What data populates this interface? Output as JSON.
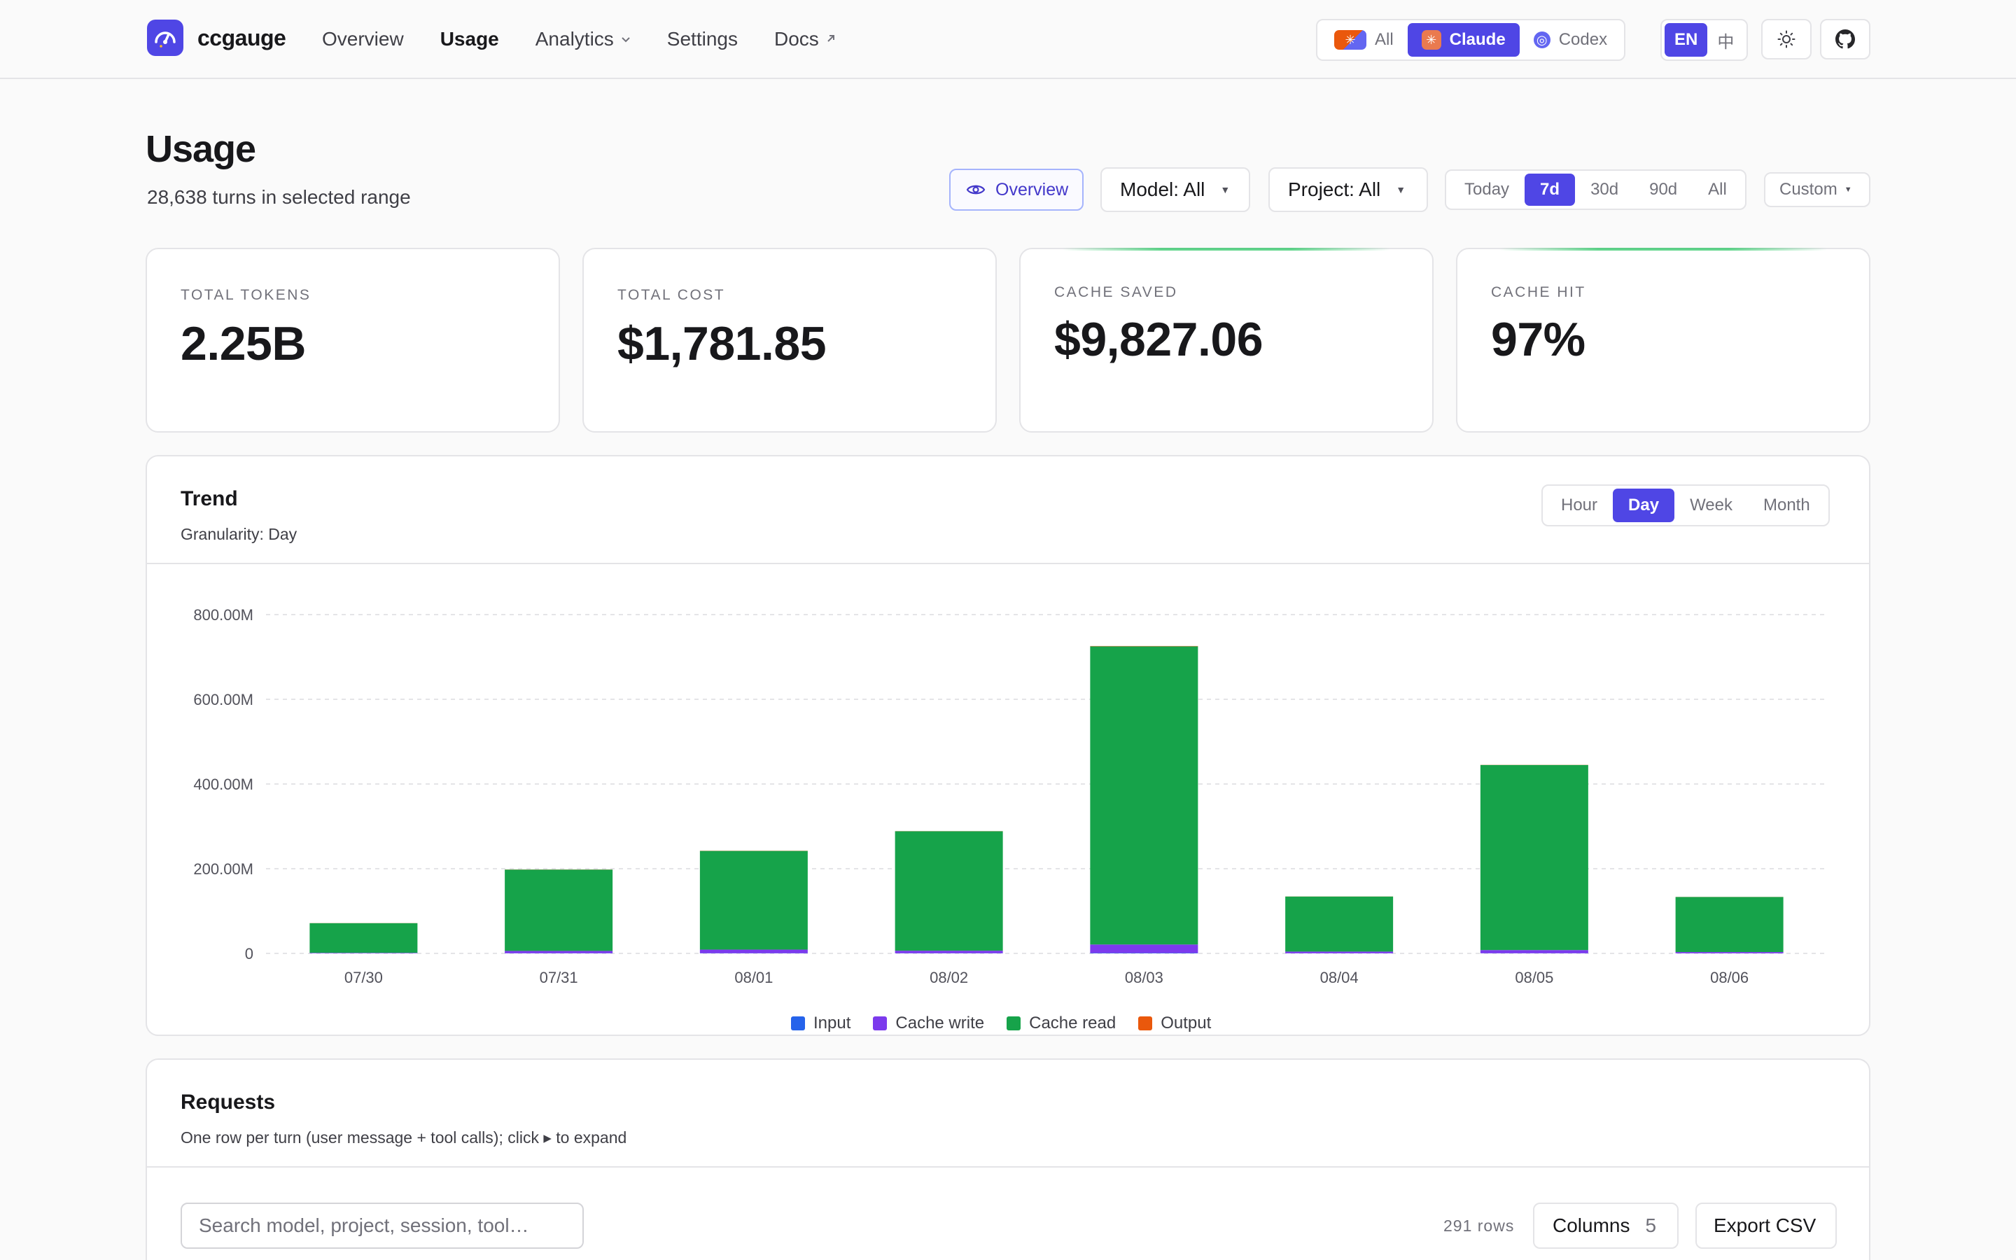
{
  "app": {
    "name": "ccgauge",
    "nav": [
      {
        "label": "Overview",
        "active": false,
        "suffix": ""
      },
      {
        "label": "Usage",
        "active": true,
        "suffix": ""
      },
      {
        "label": "Analytics",
        "active": false,
        "suffix": "⌄"
      },
      {
        "label": "Settings",
        "active": false,
        "suffix": ""
      },
      {
        "label": "Docs",
        "active": false,
        "suffix": "↗"
      }
    ],
    "providers": {
      "all": "All",
      "claude": "Claude",
      "codex": "Codex",
      "selected": "Claude"
    },
    "languages": {
      "en": "EN",
      "zh": "中",
      "selected": "EN"
    },
    "icons": {
      "theme": "sun-icon",
      "github": "github-icon"
    }
  },
  "page": {
    "title": "Usage",
    "subtitle": "28,638 turns in selected range",
    "overview_button": "Overview",
    "model_filter": "Model: All",
    "project_filter": "Project: All",
    "ranges": [
      "Today",
      "7d",
      "30d",
      "90d",
      "All"
    ],
    "range_selected": "7d",
    "custom_range": "Custom"
  },
  "stats": {
    "total_tokens": {
      "label": "TOTAL TOKENS",
      "value": "2.25B"
    },
    "total_cost": {
      "label": "TOTAL COST",
      "value": "$1,781.85"
    },
    "cache_saved": {
      "label": "CACHE SAVED",
      "value": "$9,827.06"
    },
    "cache_hit": {
      "label": "CACHE HIT",
      "value": "97%"
    }
  },
  "trend": {
    "title": "Trend",
    "granularity_text": "Granularity: Day",
    "granularity_options": [
      "Hour",
      "Day",
      "Week",
      "Month"
    ],
    "granularity_selected": "Day"
  },
  "colors": {
    "accent": "#4f46e5",
    "input": "#2563eb",
    "cache_write": "#7c3aed",
    "cache_read": "#16a34a",
    "output": "#ea580c"
  },
  "chart_data": {
    "type": "bar",
    "stacked": true,
    "categories": [
      "07/30",
      "07/31",
      "08/01",
      "08/02",
      "08/03",
      "08/04",
      "08/05",
      "08/06"
    ],
    "series": [
      {
        "name": "Input",
        "color": "#2563eb",
        "values": [
          0.2,
          0.4,
          0.5,
          0.4,
          1.0,
          0.3,
          0.4,
          0.2
        ]
      },
      {
        "name": "Cache write",
        "color": "#7c3aed",
        "values": [
          1.2,
          5.5,
          8.5,
          6.0,
          20.0,
          4.0,
          7.5,
          3.0
        ]
      },
      {
        "name": "Cache read",
        "color": "#16a34a",
        "values": [
          70,
          192,
          233,
          282,
          704,
          130,
          437,
          130
        ]
      },
      {
        "name": "Output",
        "color": "#ea580c",
        "values": [
          0.2,
          0.3,
          0.4,
          0.3,
          0.8,
          0.2,
          0.3,
          0.2
        ]
      }
    ],
    "y_ticks": [
      0,
      200,
      400,
      600,
      800
    ],
    "y_tick_labels": [
      "0",
      "200.00M",
      "400.00M",
      "600.00M",
      "800.00M"
    ],
    "ylim": [
      0,
      800
    ],
    "y_unit": "M tokens",
    "grid": true,
    "legend_position": "bottom"
  },
  "requests": {
    "title": "Requests",
    "subtitle": "One row per turn (user message + tool calls); click ▸ to expand",
    "search_placeholder": "Search model, project, session, tool…",
    "row_count": "291 rows",
    "columns_label": "Columns",
    "columns_count": "5",
    "export_label": "Export CSV"
  }
}
